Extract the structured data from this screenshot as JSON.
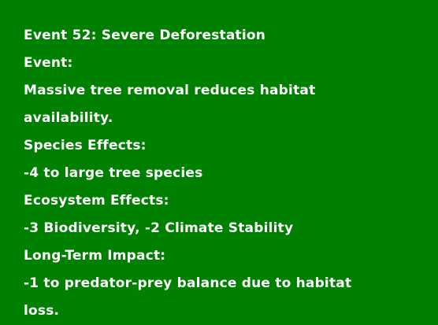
{
  "card": {
    "background_color": "#008000",
    "text_color": "#ffffff",
    "title": "Event 52: Severe Deforestation",
    "event_label": "Event:",
    "event_text_line1": "Massive tree removal reduces habitat",
    "event_text_line2": "availability.",
    "species_label": "Species Effects:",
    "species_text": "-4 to large tree species",
    "ecosystem_label": "Ecosystem Effects:",
    "ecosystem_text": "-3 Biodiversity, -2 Climate Stability",
    "longterm_label": "Long-Term Impact:",
    "longterm_text_line1": "-1 to predator-prey balance due to habitat",
    "longterm_text_line2": "loss."
  }
}
